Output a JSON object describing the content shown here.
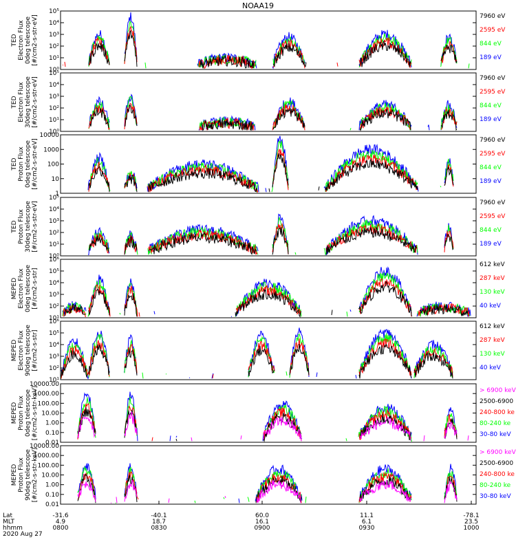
{
  "title": "NOAA19",
  "colors": {
    "black": "#000000",
    "red": "#ff0000",
    "green": "#00ff00",
    "blue": "#0000ff",
    "magenta": "#ff00ff"
  },
  "chart_data": [
    {
      "type": "line",
      "ylabel": [
        "TED",
        "Electron Flux",
        "0deg telescope",
        "[#/cm2-s-str-eV]"
      ],
      "yscale": "log",
      "ytick_labels": [
        "10⁰",
        "10¹",
        "10²",
        "10³",
        "10⁴",
        "10⁵"
      ],
      "legend": [
        {
          "name": "7960 eV",
          "color": "#000000"
        },
        {
          "name": "2595 eV",
          "color": "#ff0000"
        },
        {
          "name": "844 eV",
          "color": "#00ff00"
        },
        {
          "name": "189 eV",
          "color": "#0000ff"
        }
      ]
    },
    {
      "type": "line",
      "ylabel": [
        "TED",
        "Electron Flux",
        "30deg telescope",
        "[#/cm2-s-str-eV]"
      ],
      "yscale": "log",
      "ytick_labels": [
        "10⁰",
        "10¹",
        "10²",
        "10³",
        "10⁴",
        "10⁵"
      ],
      "legend": [
        {
          "name": "7960 eV",
          "color": "#000000"
        },
        {
          "name": "2595 eV",
          "color": "#ff0000"
        },
        {
          "name": "844 eV",
          "color": "#00ff00"
        },
        {
          "name": "189 eV",
          "color": "#0000ff"
        }
      ]
    },
    {
      "type": "line",
      "ylabel": [
        "TED",
        "Proton Flux",
        "0deg telescope",
        "[#/cm2-s-str-eV]"
      ],
      "yscale": "log",
      "ytick_labels": [
        "1",
        "10",
        "100",
        "1000",
        "10000"
      ],
      "legend": [
        {
          "name": "7960 eV",
          "color": "#000000"
        },
        {
          "name": "2595 eV",
          "color": "#ff0000"
        },
        {
          "name": "844 eV",
          "color": "#00ff00"
        },
        {
          "name": "189 eV",
          "color": "#0000ff"
        }
      ]
    },
    {
      "type": "line",
      "ylabel": [
        "TED",
        "Proton Flux",
        "30deg telescope",
        "[#/cm2-s-str-eV]"
      ],
      "yscale": "log",
      "ytick_labels": [
        "10⁰",
        "10¹",
        "10²",
        "10³",
        "10⁴",
        "10⁵"
      ],
      "legend": [
        {
          "name": "7960 eV",
          "color": "#000000"
        },
        {
          "name": "2595 eV",
          "color": "#ff0000"
        },
        {
          "name": "844 eV",
          "color": "#00ff00"
        },
        {
          "name": "189 eV",
          "color": "#0000ff"
        }
      ]
    },
    {
      "type": "line",
      "ylabel": [
        "MEPED",
        "Electron Flux",
        "0deg telescope",
        "[#/cm2-s-str]"
      ],
      "yscale": "log",
      "ytick_labels": [
        "10¹",
        "10²",
        "10³",
        "10⁴",
        "10⁵",
        "10⁶"
      ],
      "legend": [
        {
          "name": "612 keV",
          "color": "#000000"
        },
        {
          "name": "287 keV",
          "color": "#ff0000"
        },
        {
          "name": "130 keV",
          "color": "#00ff00"
        },
        {
          "name": "40 keV",
          "color": "#0000ff"
        }
      ]
    },
    {
      "type": "line",
      "ylabel": [
        "MEPED",
        "Electron Flux",
        "90deg telescope",
        "[#/cm2-s-str]"
      ],
      "yscale": "log",
      "ytick_labels": [
        "10¹",
        "10²",
        "10³",
        "10⁴",
        "10⁵",
        "10⁶"
      ],
      "legend": [
        {
          "name": "612 keV",
          "color": "#000000"
        },
        {
          "name": "287 keV",
          "color": "#ff0000"
        },
        {
          "name": "130 keV",
          "color": "#00ff00"
        },
        {
          "name": "40 keV",
          "color": "#0000ff"
        }
      ]
    },
    {
      "type": "line",
      "ylabel": [
        "MEPED",
        "Proton Flux",
        "0deg telescope",
        "[#/cm2-s-str-keV]"
      ],
      "yscale": "log",
      "ytick_labels": [
        "0.01",
        "0.10",
        "1.00",
        "10.00",
        "100.00",
        "1000.00",
        "10000.00"
      ],
      "legend": [
        {
          "name": "> 6900 keV",
          "color": "#ff00ff"
        },
        {
          "name": "2500-6900",
          "color": "#000000"
        },
        {
          "name": "240-800 ke",
          "color": "#ff0000"
        },
        {
          "name": "80-240 ke",
          "color": "#00ff00"
        },
        {
          "name": "30-80 keV",
          "color": "#0000ff"
        }
      ]
    },
    {
      "type": "line",
      "ylabel": [
        "MEPED",
        "Proton Flux",
        "90deg telescope",
        "[#/cm2-s-str-keV]"
      ],
      "yscale": "log",
      "ytick_labels": [
        "0.01",
        "0.10",
        "1.00",
        "10.00",
        "100.00",
        "1000.00",
        "10000.00"
      ],
      "legend": [
        {
          "name": "> 6900 keV",
          "color": "#ff00ff"
        },
        {
          "name": "2500-6900",
          "color": "#000000"
        },
        {
          "name": "240-800 ke",
          "color": "#ff0000"
        },
        {
          "name": "80-240 ke",
          "color": "#00ff00"
        },
        {
          "name": "30-80 keV",
          "color": "#0000ff"
        }
      ]
    }
  ],
  "x_axis": {
    "row_labels": [
      "Lat",
      "MLT",
      "hhmm",
      "2020 Aug 27"
    ],
    "ticks": [
      {
        "lat": "-31.6",
        "mlt": "4.9",
        "hhmm": "0800"
      },
      {
        "lat": "-40.1",
        "mlt": "18.7",
        "hhmm": "0830"
      },
      {
        "lat": "60.0",
        "mlt": "16.1",
        "hhmm": "0900"
      },
      {
        "lat": "11.1",
        "mlt": "6.1",
        "hhmm": "0930"
      },
      {
        "lat": "-78.1",
        "mlt": "23.5",
        "hhmm": "1000"
      }
    ]
  }
}
